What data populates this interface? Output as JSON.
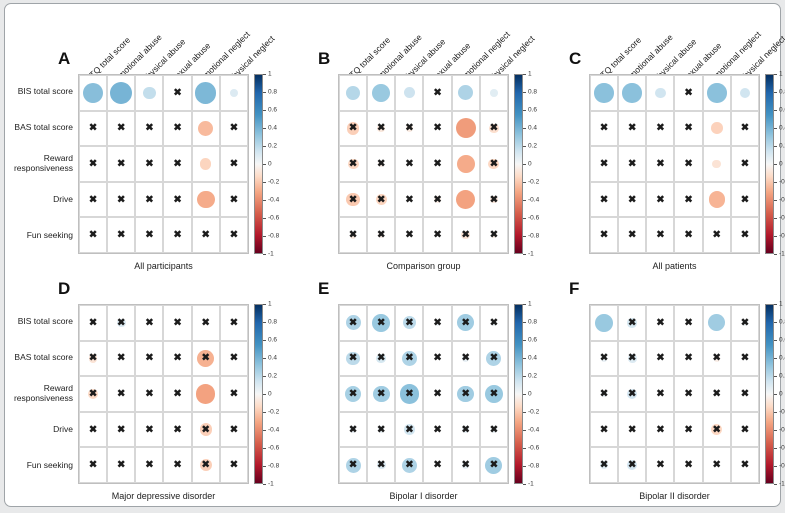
{
  "figure_title": "",
  "chart_data": {
    "type": "heatmap",
    "subtype": "correlation-bubble-matrix",
    "columns": [
      "CTQ total score",
      "Emotional abuse",
      "Physical abuse",
      "Sexual abuse",
      "Emotional neglect",
      "Physical neglect"
    ],
    "rows": [
      "BIS total score",
      "BAS total score",
      "Reward responsiveness",
      "Drive",
      "Fun seeking"
    ],
    "value_range": [
      -1,
      1
    ],
    "legend_position": "right-colorbar-per-panel",
    "colorbar_ticks": [
      "1",
      "0.8",
      "0.6",
      "0.4",
      "0.2",
      "0",
      "-0.2",
      "-0.4",
      "-0.6",
      "-0.8",
      "-1"
    ],
    "colors": {
      "scale_stops_r": [
        1,
        0.8,
        0.55,
        0.32,
        0.14,
        0,
        -0.14,
        -0.32,
        -0.55,
        -0.8,
        -1
      ],
      "scale_stops_hex": [
        "#053061",
        "#2166ac",
        "#4393c3",
        "#92c5de",
        "#d1e5f0",
        "#f7f7f7",
        "#fddbc7",
        "#f4a582",
        "#d6604d",
        "#b2182b",
        "#67001f"
      ],
      "x_mark": "#1c1c1c",
      "grid_line": "#d7d7d7"
    },
    "x_meaning": "crossed cells are non-significant correlations",
    "panels": [
      {
        "letter": "A",
        "caption": "All participants",
        "grid_row": 0,
        "grid_col": 0,
        "show_row_labels": true,
        "show_col_headers": true,
        "r": [
          [
            0.35,
            0.4,
            0.18,
            0.0,
            0.38,
            0.1
          ],
          [
            0.0,
            0.0,
            0.0,
            0.0,
            -0.25,
            0.0
          ],
          [
            0.0,
            0.0,
            0.0,
            0.0,
            -0.16,
            0.0
          ],
          [
            0.0,
            0.0,
            0.0,
            0.0,
            -0.3,
            0.0
          ],
          [
            0.0,
            0.0,
            0.0,
            0.0,
            0.0,
            0.0
          ]
        ],
        "crossed": [
          [
            0,
            0,
            0,
            1,
            0,
            0
          ],
          [
            1,
            1,
            1,
            1,
            0,
            1
          ],
          [
            1,
            1,
            1,
            1,
            0,
            1
          ],
          [
            1,
            1,
            1,
            1,
            0,
            1
          ],
          [
            1,
            1,
            1,
            1,
            1,
            1
          ]
        ]
      },
      {
        "letter": "B",
        "caption": "Comparison group",
        "grid_row": 0,
        "grid_col": 1,
        "show_row_labels": false,
        "show_col_headers": true,
        "r": [
          [
            0.22,
            0.3,
            0.15,
            0.0,
            0.24,
            0.08
          ],
          [
            -0.18,
            -0.08,
            -0.06,
            0.0,
            -0.35,
            -0.12
          ],
          [
            -0.15,
            -0.05,
            0.0,
            0.0,
            -0.3,
            -0.15
          ],
          [
            -0.2,
            -0.16,
            0.0,
            -0.05,
            -0.33,
            -0.08
          ],
          [
            -0.06,
            -0.05,
            0.0,
            0.0,
            -0.1,
            -0.05
          ]
        ],
        "crossed": [
          [
            0,
            0,
            0,
            1,
            0,
            0
          ],
          [
            1,
            1,
            1,
            1,
            0,
            1
          ],
          [
            1,
            1,
            1,
            1,
            0,
            1
          ],
          [
            1,
            1,
            1,
            1,
            0,
            1
          ],
          [
            1,
            1,
            1,
            1,
            1,
            1
          ]
        ]
      },
      {
        "letter": "C",
        "caption": "All patients",
        "grid_row": 0,
        "grid_col": 2,
        "show_row_labels": false,
        "show_col_headers": true,
        "r": [
          [
            0.34,
            0.34,
            0.14,
            0.0,
            0.34,
            0.14
          ],
          [
            0.0,
            0.0,
            0.0,
            0.0,
            -0.17,
            0.0
          ],
          [
            0.0,
            0.0,
            0.0,
            0.0,
            -0.1,
            0.0
          ],
          [
            0.0,
            0.0,
            0.0,
            0.0,
            -0.27,
            0.0
          ],
          [
            0.0,
            0.0,
            0.0,
            0.0,
            0.0,
            0.0
          ]
        ],
        "crossed": [
          [
            0,
            0,
            0,
            1,
            0,
            0
          ],
          [
            1,
            1,
            1,
            1,
            0,
            1
          ],
          [
            1,
            1,
            1,
            1,
            0,
            1
          ],
          [
            1,
            1,
            1,
            1,
            0,
            1
          ],
          [
            1,
            1,
            1,
            1,
            1,
            1
          ]
        ]
      },
      {
        "letter": "D",
        "caption": "Major depressive disorder",
        "grid_row": 1,
        "grid_col": 0,
        "show_row_labels": true,
        "show_col_headers": false,
        "r": [
          [
            0.0,
            0.1,
            0.0,
            0.0,
            0.0,
            0.0
          ],
          [
            -0.1,
            0.0,
            0.0,
            0.0,
            -0.28,
            0.0
          ],
          [
            -0.14,
            0.0,
            0.0,
            0.0,
            -0.33,
            0.0
          ],
          [
            0.0,
            0.0,
            0.0,
            0.0,
            -0.18,
            0.0
          ],
          [
            0.0,
            0.0,
            0.0,
            0.0,
            -0.18,
            0.0
          ]
        ],
        "crossed": [
          [
            1,
            1,
            1,
            1,
            1,
            1
          ],
          [
            1,
            1,
            1,
            1,
            1,
            1
          ],
          [
            1,
            1,
            1,
            1,
            0,
            1
          ],
          [
            1,
            1,
            1,
            1,
            1,
            1
          ],
          [
            1,
            1,
            1,
            1,
            1,
            1
          ]
        ]
      },
      {
        "letter": "E",
        "caption": "Bipolar I disorder",
        "grid_row": 1,
        "grid_col": 1,
        "show_row_labels": false,
        "show_col_headers": false,
        "r": [
          [
            0.24,
            0.3,
            0.2,
            0.04,
            0.28,
            0.04
          ],
          [
            0.2,
            0.12,
            0.24,
            0.0,
            0.06,
            0.24
          ],
          [
            0.26,
            0.28,
            0.34,
            0.0,
            0.28,
            0.3
          ],
          [
            0.06,
            0.05,
            0.14,
            0.0,
            0.06,
            0.05
          ],
          [
            0.24,
            0.1,
            0.24,
            0.0,
            0.06,
            0.28
          ]
        ],
        "crossed": [
          [
            1,
            1,
            1,
            1,
            1,
            1
          ],
          [
            1,
            1,
            1,
            1,
            1,
            1
          ],
          [
            1,
            1,
            1,
            1,
            1,
            1
          ],
          [
            1,
            1,
            1,
            1,
            1,
            1
          ],
          [
            1,
            1,
            1,
            1,
            1,
            1
          ]
        ]
      },
      {
        "letter": "F",
        "caption": "Bipolar II disorder",
        "grid_row": 1,
        "grid_col": 2,
        "show_row_labels": false,
        "show_col_headers": false,
        "r": [
          [
            0.3,
            0.12,
            0.0,
            0.0,
            0.28,
            0.04
          ],
          [
            0.06,
            0.1,
            0.0,
            0.0,
            -0.05,
            0.0
          ],
          [
            0.05,
            0.13,
            0.0,
            0.0,
            0.0,
            0.0
          ],
          [
            0.0,
            0.0,
            0.0,
            0.0,
            -0.15,
            0.0
          ],
          [
            0.08,
            0.13,
            0.0,
            0.0,
            0.0,
            0.0
          ]
        ],
        "crossed": [
          [
            0,
            1,
            1,
            1,
            0,
            1
          ],
          [
            1,
            1,
            1,
            1,
            1,
            1
          ],
          [
            1,
            1,
            1,
            1,
            1,
            1
          ],
          [
            1,
            1,
            1,
            1,
            1,
            1
          ],
          [
            1,
            1,
            1,
            1,
            1,
            1
          ]
        ]
      }
    ]
  }
}
